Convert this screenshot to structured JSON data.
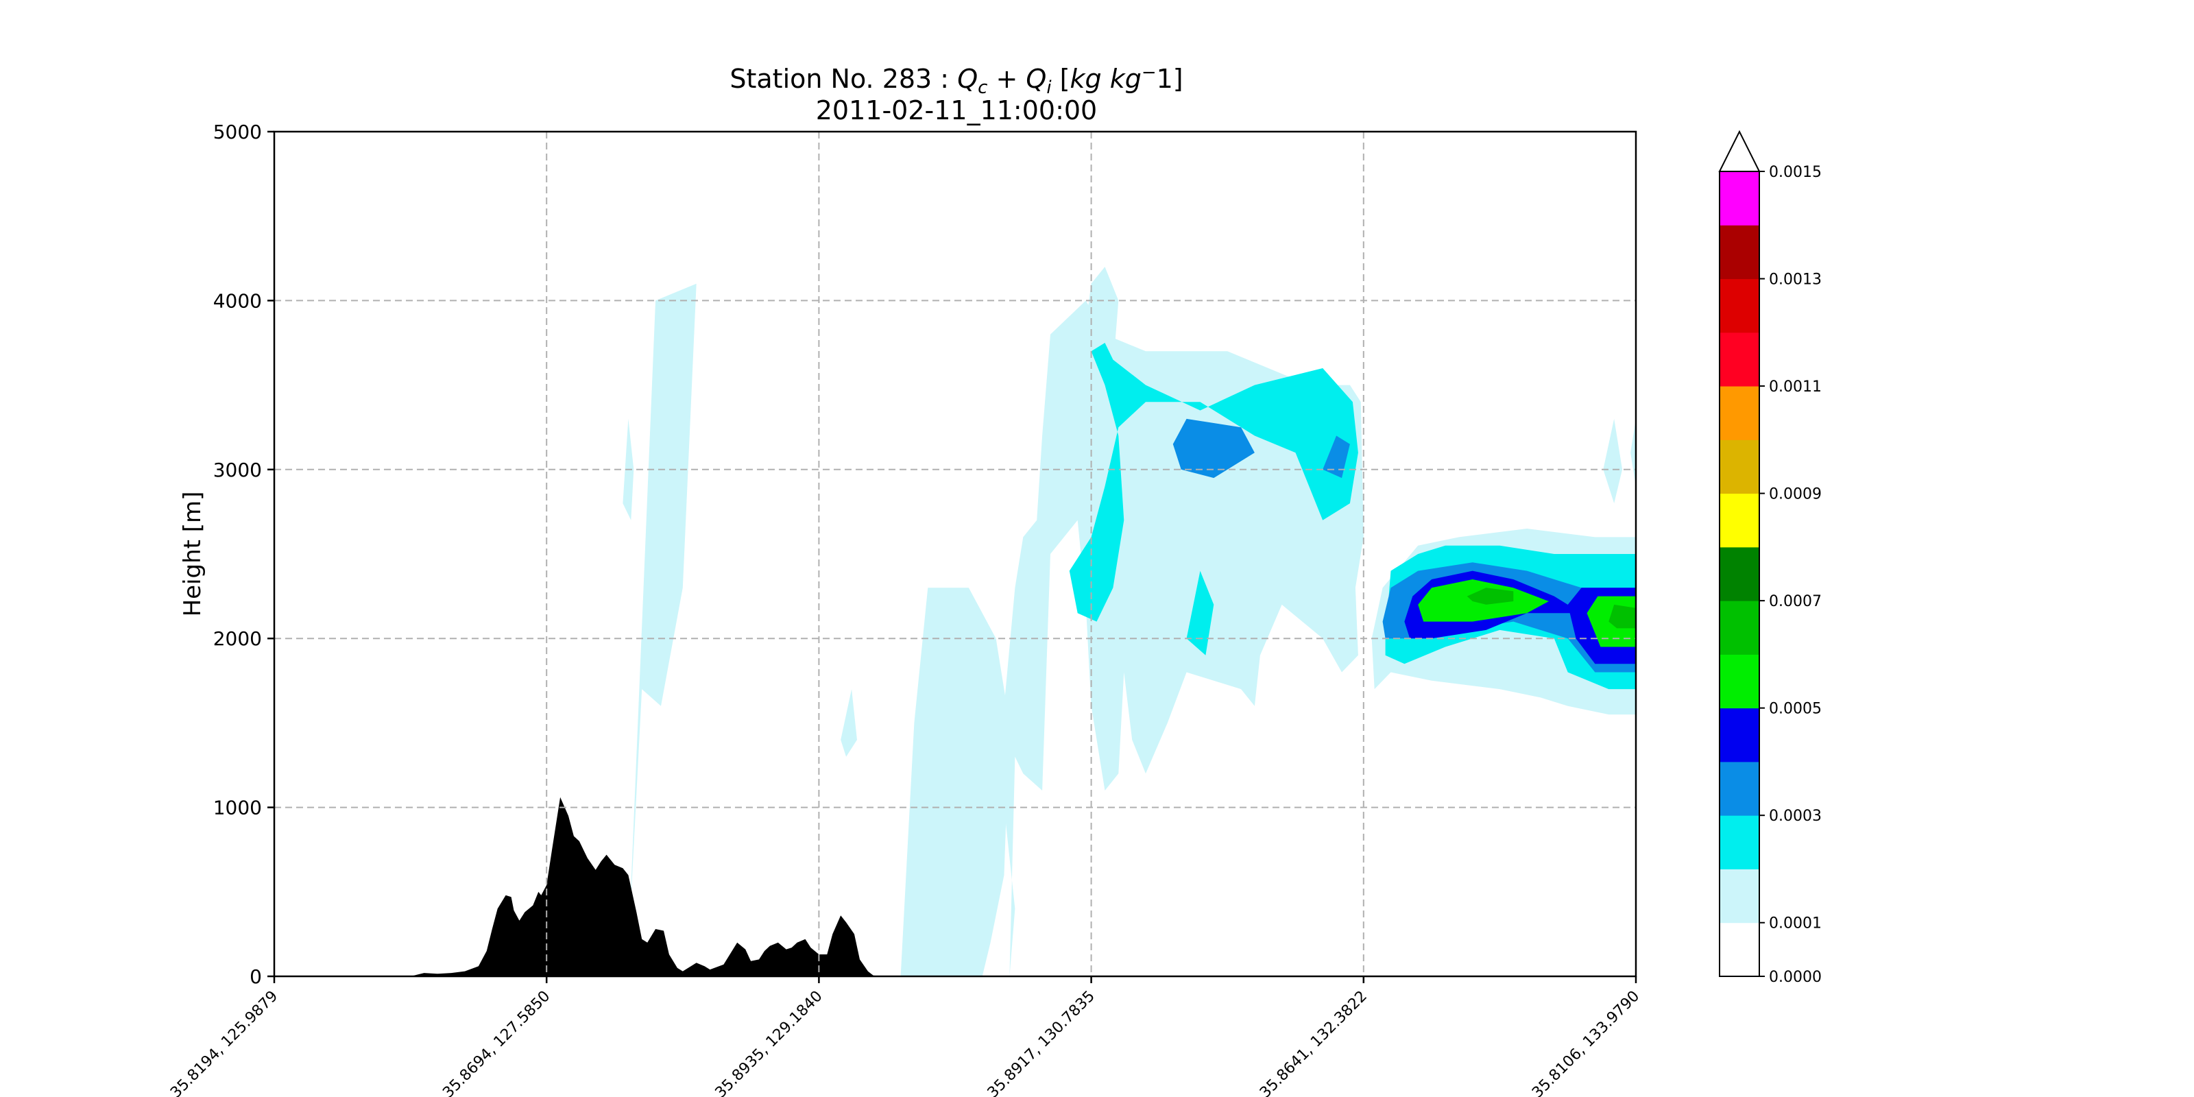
{
  "chart_data": {
    "type": "contour-cross-section",
    "title": {
      "station_prefix": "Station No. 283 : ",
      "qc": "Q",
      "qc_sub": "c",
      "plus": " + ",
      "qi": "Q",
      "qi_sub": "i",
      "units_open": " [",
      "units_kg": "kg kg",
      "units_sup": "−",
      "units_tail": "1]",
      "datetime": "2011-02-11_11:00:00"
    },
    "ylabel": "Height [m]",
    "ylim": [
      0,
      5000
    ],
    "yticks": [
      "0",
      "1000",
      "2000",
      "3000",
      "4000",
      "5000"
    ],
    "xlim": [
      0,
      5
    ],
    "xticks": [
      {
        "pos": 0,
        "label": "35.8194, 125.9879"
      },
      {
        "pos": 1,
        "label": "35.8694, 127.5850"
      },
      {
        "pos": 2,
        "label": "35.8935, 129.1840"
      },
      {
        "pos": 3,
        "label": "35.8917, 130.7835"
      },
      {
        "pos": 4,
        "label": "35.8641, 132.3822"
      },
      {
        "pos": 5,
        "label": "35.8106, 133.9790"
      }
    ],
    "grid": true,
    "colorbar": {
      "levels": [
        0,
        0.0001,
        0.0002,
        0.0003,
        0.0004,
        0.0005,
        0.0006,
        0.0007,
        0.0008,
        0.0009,
        0.001,
        0.0011,
        0.0012,
        0.0013,
        0.0014,
        0.0015
      ],
      "colors": [
        "#ffffff",
        "#ccf5fa",
        "#00eeee",
        "#0a8de6",
        "#0000f0",
        "#00ee00",
        "#00c000",
        "#008200",
        "#ffff00",
        "#dcb400",
        "#ff9900",
        "#ff0022",
        "#dd0000",
        "#aa0000",
        "#ff00ff",
        "#9955d0"
      ],
      "extend_color": "#ffffff",
      "tick_labels": [
        "0.0000",
        "0.0001",
        "0.0003",
        "0.0005",
        "0.0007",
        "0.0009",
        "0.0011",
        "0.0013",
        "0.0015"
      ],
      "tick_levels": [
        0,
        0.0001,
        0.0003,
        0.0005,
        0.0007,
        0.0009,
        0.0011,
        0.0013,
        0.0015
      ]
    },
    "terrain": {
      "color": "#000000",
      "x": [
        0,
        0.5,
        0.55,
        0.6,
        0.65,
        0.7,
        0.75,
        0.78,
        0.8,
        0.82,
        0.85,
        0.87,
        0.88,
        0.9,
        0.92,
        0.95,
        0.97,
        0.98,
        1.0,
        1.02,
        1.05,
        1.08,
        1.1,
        1.12,
        1.15,
        1.18,
        1.2,
        1.22,
        1.25,
        1.28,
        1.3,
        1.33,
        1.35,
        1.37,
        1.4,
        1.43,
        1.45,
        1.48,
        1.5,
        1.53,
        1.55,
        1.58,
        1.6,
        1.65,
        1.7,
        1.73,
        1.75,
        1.78,
        1.8,
        1.82,
        1.85,
        1.88,
        1.9,
        1.92,
        1.95,
        1.97,
        2.0,
        2.03,
        2.05,
        2.08,
        2.1,
        2.13,
        2.15,
        2.18,
        2.2,
        2.23,
        2.25,
        2.3,
        2.5,
        5.0
      ],
      "y": [
        0,
        0,
        20,
        15,
        20,
        30,
        60,
        150,
        280,
        400,
        480,
        470,
        390,
        330,
        380,
        420,
        500,
        480,
        540,
        750,
        1060,
        950,
        830,
        800,
        700,
        630,
        680,
        720,
        660,
        640,
        600,
        380,
        220,
        200,
        280,
        270,
        130,
        50,
        30,
        60,
        80,
        60,
        40,
        70,
        200,
        160,
        90,
        100,
        150,
        180,
        200,
        160,
        170,
        200,
        220,
        170,
        130,
        130,
        250,
        360,
        320,
        250,
        100,
        30,
        5,
        0,
        0,
        0,
        0,
        0
      ]
    },
    "contours": [
      {
        "level": 5e-05,
        "color": "#ccf5fa",
        "polygons": [
          [
            [
              1.3,
              150
            ],
            [
              1.4,
              4000
            ],
            [
              1.55,
              4100
            ],
            [
              1.5,
              2300
            ],
            [
              1.42,
              1600
            ],
            [
              1.35,
              1700
            ]
          ],
          [
            [
              2.3,
              0
            ],
            [
              2.35,
              1500
            ],
            [
              2.4,
              2300
            ],
            [
              2.55,
              2300
            ],
            [
              2.65,
              2000
            ],
            [
              2.7,
              1500
            ],
            [
              2.68,
              600
            ],
            [
              2.63,
              200
            ],
            [
              2.6,
              0
            ]
          ],
          [
            [
              2.7,
              0
            ],
            [
              2.72,
              1300
            ],
            [
              2.75,
              1200
            ],
            [
              2.82,
              1100
            ],
            [
              2.85,
              2500
            ],
            [
              2.95,
              2700
            ],
            [
              2.98,
              2200
            ],
            [
              3.0,
              1600
            ],
            [
              3.05,
              1100
            ],
            [
              3.1,
              1200
            ],
            [
              3.12,
              1800
            ],
            [
              3.15,
              1400
            ],
            [
              3.2,
              1200
            ],
            [
              3.28,
              1500
            ],
            [
              3.35,
              1800
            ],
            [
              3.45,
              1750
            ],
            [
              3.55,
              1700
            ],
            [
              3.6,
              1600
            ],
            [
              3.62,
              1900
            ],
            [
              3.7,
              2200
            ],
            [
              3.85,
              2000
            ],
            [
              3.92,
              1800
            ],
            [
              3.98,
              1900
            ],
            [
              3.97,
              2300
            ],
            [
              4.0,
              2600
            ],
            [
              3.99,
              3400
            ],
            [
              3.95,
              3500
            ],
            [
              3.8,
              3500
            ],
            [
              3.5,
              3700
            ],
            [
              3.2,
              3700
            ],
            [
              3.05,
              3800
            ],
            [
              2.98,
              4000
            ],
            [
              2.85,
              3800
            ],
            [
              2.82,
              3200
            ],
            [
              2.8,
              2700
            ],
            [
              2.75,
              2600
            ],
            [
              2.72,
              2300
            ],
            [
              2.68,
              1600
            ],
            [
              2.68,
              1000
            ],
            [
              2.72,
              400
            ],
            [
              2.7,
              0
            ]
          ],
          [
            [
              2.95,
              3500
            ],
            [
              3.0,
              4100
            ],
            [
              3.05,
              4200
            ],
            [
              3.1,
              4000
            ],
            [
              3.08,
              3600
            ],
            [
              3.0,
              3500
            ]
          ],
          [
            [
              3.02,
              3300
            ],
            [
              3.08,
              3500
            ],
            [
              3.05,
              3900
            ],
            [
              3.0,
              3700
            ],
            [
              2.98,
              3400
            ]
          ],
          [
            [
              4.04,
              1700
            ],
            [
              4.1,
              1800
            ],
            [
              4.25,
              1750
            ],
            [
              4.5,
              1700
            ],
            [
              4.65,
              1650
            ],
            [
              4.75,
              1600
            ],
            [
              4.9,
              1550
            ],
            [
              5.0,
              1550
            ],
            [
              5.0,
              2600
            ],
            [
              4.85,
              2600
            ],
            [
              4.6,
              2650
            ],
            [
              4.35,
              2600
            ],
            [
              4.2,
              2550
            ],
            [
              4.07,
              2300
            ],
            [
              4.03,
              2000
            ]
          ],
          [
            [
              4.88,
              3000
            ],
            [
              4.92,
              3300
            ],
            [
              4.95,
              3000
            ],
            [
              4.92,
              2800
            ]
          ],
          [
            [
              4.98,
              3100
            ],
            [
              5.0,
              3300
            ],
            [
              5.0,
              2900
            ]
          ],
          [
            [
              1.28,
              2800
            ],
            [
              1.3,
              3300
            ],
            [
              1.32,
              3000
            ],
            [
              1.31,
              2700
            ]
          ],
          [
            [
              2.08,
              1400
            ],
            [
              2.12,
              1700
            ],
            [
              2.14,
              1400
            ],
            [
              2.1,
              1300
            ]
          ]
        ]
      },
      {
        "level": 0.00015,
        "color": "#00eeee",
        "polygons": [
          [
            [
              3.0,
              3700
            ],
            [
              3.05,
              3500
            ],
            [
              3.1,
              3200
            ],
            [
              3.12,
              2700
            ],
            [
              3.08,
              2300
            ],
            [
              3.02,
              2100
            ],
            [
              2.95,
              2150
            ],
            [
              2.92,
              2400
            ],
            [
              3.0,
              2600
            ],
            [
              3.05,
              2900
            ],
            [
              3.1,
              3250
            ],
            [
              3.2,
              3400
            ],
            [
              3.4,
              3400
            ],
            [
              3.6,
              3200
            ],
            [
              3.75,
              3100
            ],
            [
              3.85,
              2700
            ],
            [
              3.95,
              2800
            ],
            [
              3.98,
              3100
            ],
            [
              3.96,
              3400
            ],
            [
              3.85,
              3600
            ],
            [
              3.6,
              3500
            ],
            [
              3.4,
              3350
            ],
            [
              3.2,
              3500
            ],
            [
              3.08,
              3650
            ],
            [
              3.05,
              3750
            ]
          ],
          [
            [
              4.08,
              2000
            ],
            [
              4.1,
              2400
            ],
            [
              4.2,
              2500
            ],
            [
              4.3,
              2550
            ],
            [
              4.5,
              2550
            ],
            [
              4.7,
              2500
            ],
            [
              4.9,
              2500
            ],
            [
              5.0,
              2500
            ],
            [
              5.0,
              1700
            ],
            [
              4.9,
              1700
            ],
            [
              4.75,
              1800
            ],
            [
              4.7,
              2000
            ],
            [
              4.5,
              2050
            ],
            [
              4.3,
              1950
            ],
            [
              4.15,
              1850
            ],
            [
              4.08,
              1900
            ]
          ],
          [
            [
              3.35,
              2000
            ],
            [
              3.4,
              2400
            ],
            [
              3.45,
              2200
            ],
            [
              3.42,
              1900
            ]
          ]
        ]
      },
      {
        "level": 0.00025,
        "color": "#0a8de6",
        "polygons": [
          [
            [
              3.3,
              3150
            ],
            [
              3.35,
              3300
            ],
            [
              3.55,
              3250
            ],
            [
              3.6,
              3100
            ],
            [
              3.45,
              2950
            ],
            [
              3.33,
              3000
            ]
          ],
          [
            [
              3.85,
              3000
            ],
            [
              3.9,
              3200
            ],
            [
              3.95,
              3150
            ],
            [
              3.92,
              2950
            ]
          ],
          [
            [
              4.07,
              2100
            ],
            [
              4.1,
              2300
            ],
            [
              4.2,
              2400
            ],
            [
              4.4,
              2450
            ],
            [
              4.6,
              2400
            ],
            [
              4.8,
              2300
            ],
            [
              5.0,
              2300
            ],
            [
              5.0,
              1800
            ],
            [
              4.85,
              1800
            ],
            [
              4.75,
              2000
            ],
            [
              4.55,
              2100
            ],
            [
              4.35,
              2050
            ],
            [
              4.15,
              2000
            ],
            [
              4.08,
              2000
            ]
          ]
        ]
      },
      {
        "level": 0.00035,
        "color": "#0000f0",
        "polygons": [
          [
            [
              4.15,
              2100
            ],
            [
              4.18,
              2250
            ],
            [
              4.25,
              2350
            ],
            [
              4.4,
              2400
            ],
            [
              4.55,
              2350
            ],
            [
              4.7,
              2250
            ],
            [
              4.8,
              2150
            ],
            [
              4.6,
              2150
            ],
            [
              4.45,
              2050
            ],
            [
              4.25,
              2000
            ],
            [
              4.17,
              2000
            ]
          ],
          [
            [
              4.75,
              2200
            ],
            [
              4.8,
              2300
            ],
            [
              5.0,
              2300
            ],
            [
              5.0,
              1850
            ],
            [
              4.85,
              1850
            ],
            [
              4.78,
              2000
            ]
          ]
        ]
      },
      {
        "level": 0.00045,
        "color": "#00ee00",
        "polygons": [
          [
            [
              4.2,
              2200
            ],
            [
              4.25,
              2300
            ],
            [
              4.4,
              2350
            ],
            [
              4.55,
              2300
            ],
            [
              4.68,
              2220
            ],
            [
              4.6,
              2150
            ],
            [
              4.4,
              2100
            ],
            [
              4.22,
              2100
            ]
          ],
          [
            [
              4.82,
              2150
            ],
            [
              4.86,
              2250
            ],
            [
              5.0,
              2250
            ],
            [
              5.0,
              1950
            ],
            [
              4.87,
              1950
            ]
          ]
        ]
      },
      {
        "level": 0.00055,
        "color": "#00c000",
        "polygons": [
          [
            [
              4.38,
              2250
            ],
            [
              4.45,
              2300
            ],
            [
              4.55,
              2280
            ],
            [
              4.55,
              2220
            ],
            [
              4.45,
              2200
            ],
            [
              4.4,
              2220
            ]
          ],
          [
            [
              4.9,
              2100
            ],
            [
              4.92,
              2200
            ],
            [
              5.0,
              2180
            ],
            [
              5.0,
              2060
            ],
            [
              4.93,
              2060
            ]
          ]
        ]
      }
    ]
  }
}
